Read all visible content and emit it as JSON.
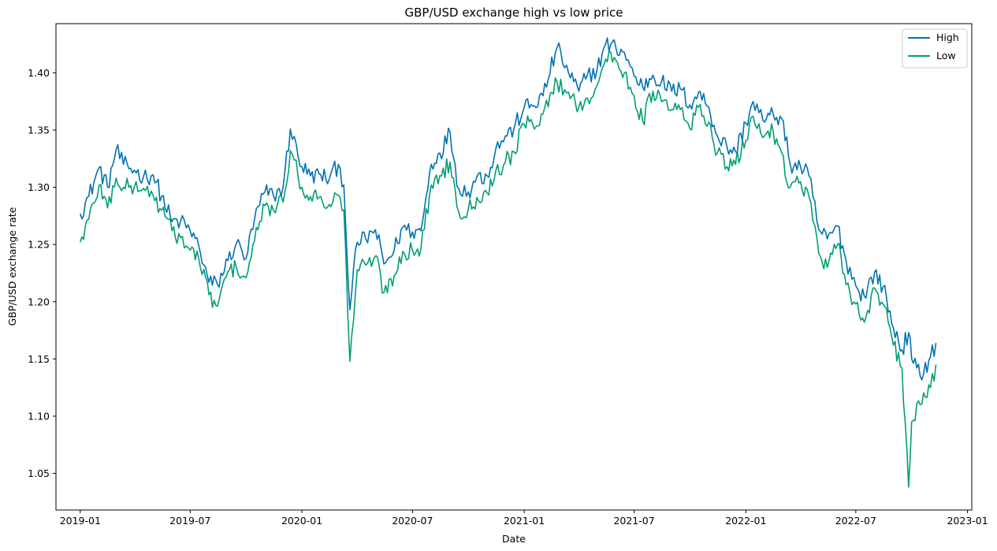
{
  "chart_data": {
    "type": "line",
    "title": "GBP/USD exchange high vs low price",
    "xlabel": "Date",
    "ylabel": "GBP/USD exchange rate",
    "x_ticks": [
      "2019-01",
      "2019-07",
      "2020-01",
      "2020-07",
      "2021-01",
      "2021-07",
      "2022-01",
      "2022-07",
      "2023-01"
    ],
    "y_ticks": [
      "1.05",
      "1.10",
      "1.15",
      "1.20",
      "1.25",
      "1.30",
      "1.35",
      "1.40"
    ],
    "xlim": [
      "2018-11-22",
      "2023-01-08"
    ],
    "ylim": [
      1.018,
      1.443
    ],
    "grid": false,
    "legend_position": "top-right",
    "colors": {
      "High": "#0072b2",
      "Low": "#009e73"
    },
    "x": [
      "2019-01-01",
      "2019-01-15",
      "2019-02-01",
      "2019-02-15",
      "2019-03-01",
      "2019-03-13",
      "2019-03-31",
      "2019-04-15",
      "2019-05-01",
      "2019-05-15",
      "2019-06-01",
      "2019-06-15",
      "2019-07-01",
      "2019-07-15",
      "2019-08-01",
      "2019-08-15",
      "2019-09-01",
      "2019-09-15",
      "2019-10-01",
      "2019-10-15",
      "2019-11-01",
      "2019-11-15",
      "2019-12-01",
      "2019-12-13",
      "2020-01-01",
      "2020-01-15",
      "2020-02-01",
      "2020-02-15",
      "2020-03-01",
      "2020-03-10",
      "2020-03-20",
      "2020-04-01",
      "2020-04-15",
      "2020-05-01",
      "2020-05-15",
      "2020-06-01",
      "2020-06-15",
      "2020-07-01",
      "2020-07-15",
      "2020-08-01",
      "2020-08-15",
      "2020-09-01",
      "2020-09-15",
      "2020-10-01",
      "2020-10-15",
      "2020-11-01",
      "2020-11-15",
      "2020-12-01",
      "2020-12-15",
      "2021-01-01",
      "2021-01-15",
      "2021-02-01",
      "2021-02-24",
      "2021-03-15",
      "2021-04-01",
      "2021-04-15",
      "2021-05-01",
      "2021-05-15",
      "2021-06-01",
      "2021-06-15",
      "2021-07-01",
      "2021-07-15",
      "2021-08-01",
      "2021-08-15",
      "2021-09-01",
      "2021-09-15",
      "2021-10-01",
      "2021-10-15",
      "2021-11-01",
      "2021-11-15",
      "2021-12-01",
      "2021-12-15",
      "2022-01-01",
      "2022-01-13",
      "2022-02-01",
      "2022-02-15",
      "2022-03-01",
      "2022-03-15",
      "2022-04-01",
      "2022-04-15",
      "2022-05-01",
      "2022-05-15",
      "2022-06-01",
      "2022-06-15",
      "2022-07-01",
      "2022-07-15",
      "2022-08-01",
      "2022-08-15",
      "2022-09-01",
      "2022-09-15",
      "2022-09-26",
      "2022-10-01",
      "2022-10-15",
      "2022-11-01",
      "2022-11-10"
    ],
    "series": [
      {
        "name": "High",
        "values": [
          1.277,
          1.292,
          1.317,
          1.3,
          1.333,
          1.32,
          1.315,
          1.309,
          1.311,
          1.292,
          1.27,
          1.27,
          1.262,
          1.249,
          1.217,
          1.215,
          1.236,
          1.251,
          1.238,
          1.272,
          1.296,
          1.293,
          1.3,
          1.351,
          1.318,
          1.31,
          1.311,
          1.307,
          1.32,
          1.302,
          1.193,
          1.252,
          1.255,
          1.263,
          1.233,
          1.245,
          1.265,
          1.261,
          1.262,
          1.32,
          1.33,
          1.348,
          1.299,
          1.296,
          1.309,
          1.31,
          1.333,
          1.345,
          1.351,
          1.37,
          1.371,
          1.38,
          1.422,
          1.4,
          1.384,
          1.398,
          1.403,
          1.425,
          1.422,
          1.418,
          1.397,
          1.388,
          1.398,
          1.392,
          1.384,
          1.386,
          1.372,
          1.383,
          1.37,
          1.345,
          1.335,
          1.331,
          1.356,
          1.375,
          1.357,
          1.364,
          1.36,
          1.32,
          1.318,
          1.31,
          1.263,
          1.255,
          1.266,
          1.236,
          1.214,
          1.205,
          1.226,
          1.213,
          1.177,
          1.158,
          1.173,
          1.15,
          1.135,
          1.152,
          1.164
        ]
      },
      {
        "name": "Low",
        "values": [
          1.252,
          1.272,
          1.302,
          1.282,
          1.308,
          1.3,
          1.3,
          1.299,
          1.293,
          1.28,
          1.262,
          1.256,
          1.245,
          1.238,
          1.206,
          1.196,
          1.226,
          1.23,
          1.221,
          1.253,
          1.284,
          1.28,
          1.287,
          1.332,
          1.3,
          1.292,
          1.292,
          1.285,
          1.293,
          1.28,
          1.148,
          1.228,
          1.232,
          1.24,
          1.208,
          1.223,
          1.244,
          1.245,
          1.246,
          1.302,
          1.31,
          1.322,
          1.279,
          1.281,
          1.291,
          1.295,
          1.314,
          1.322,
          1.331,
          1.355,
          1.355,
          1.364,
          1.392,
          1.383,
          1.37,
          1.378,
          1.389,
          1.412,
          1.411,
          1.4,
          1.38,
          1.358,
          1.384,
          1.375,
          1.368,
          1.368,
          1.351,
          1.37,
          1.357,
          1.33,
          1.318,
          1.32,
          1.341,
          1.362,
          1.345,
          1.349,
          1.33,
          1.3,
          1.305,
          1.292,
          1.242,
          1.23,
          1.25,
          1.215,
          1.198,
          1.182,
          1.212,
          1.198,
          1.162,
          1.142,
          1.038,
          1.095,
          1.11,
          1.125,
          1.145
        ]
      }
    ]
  }
}
